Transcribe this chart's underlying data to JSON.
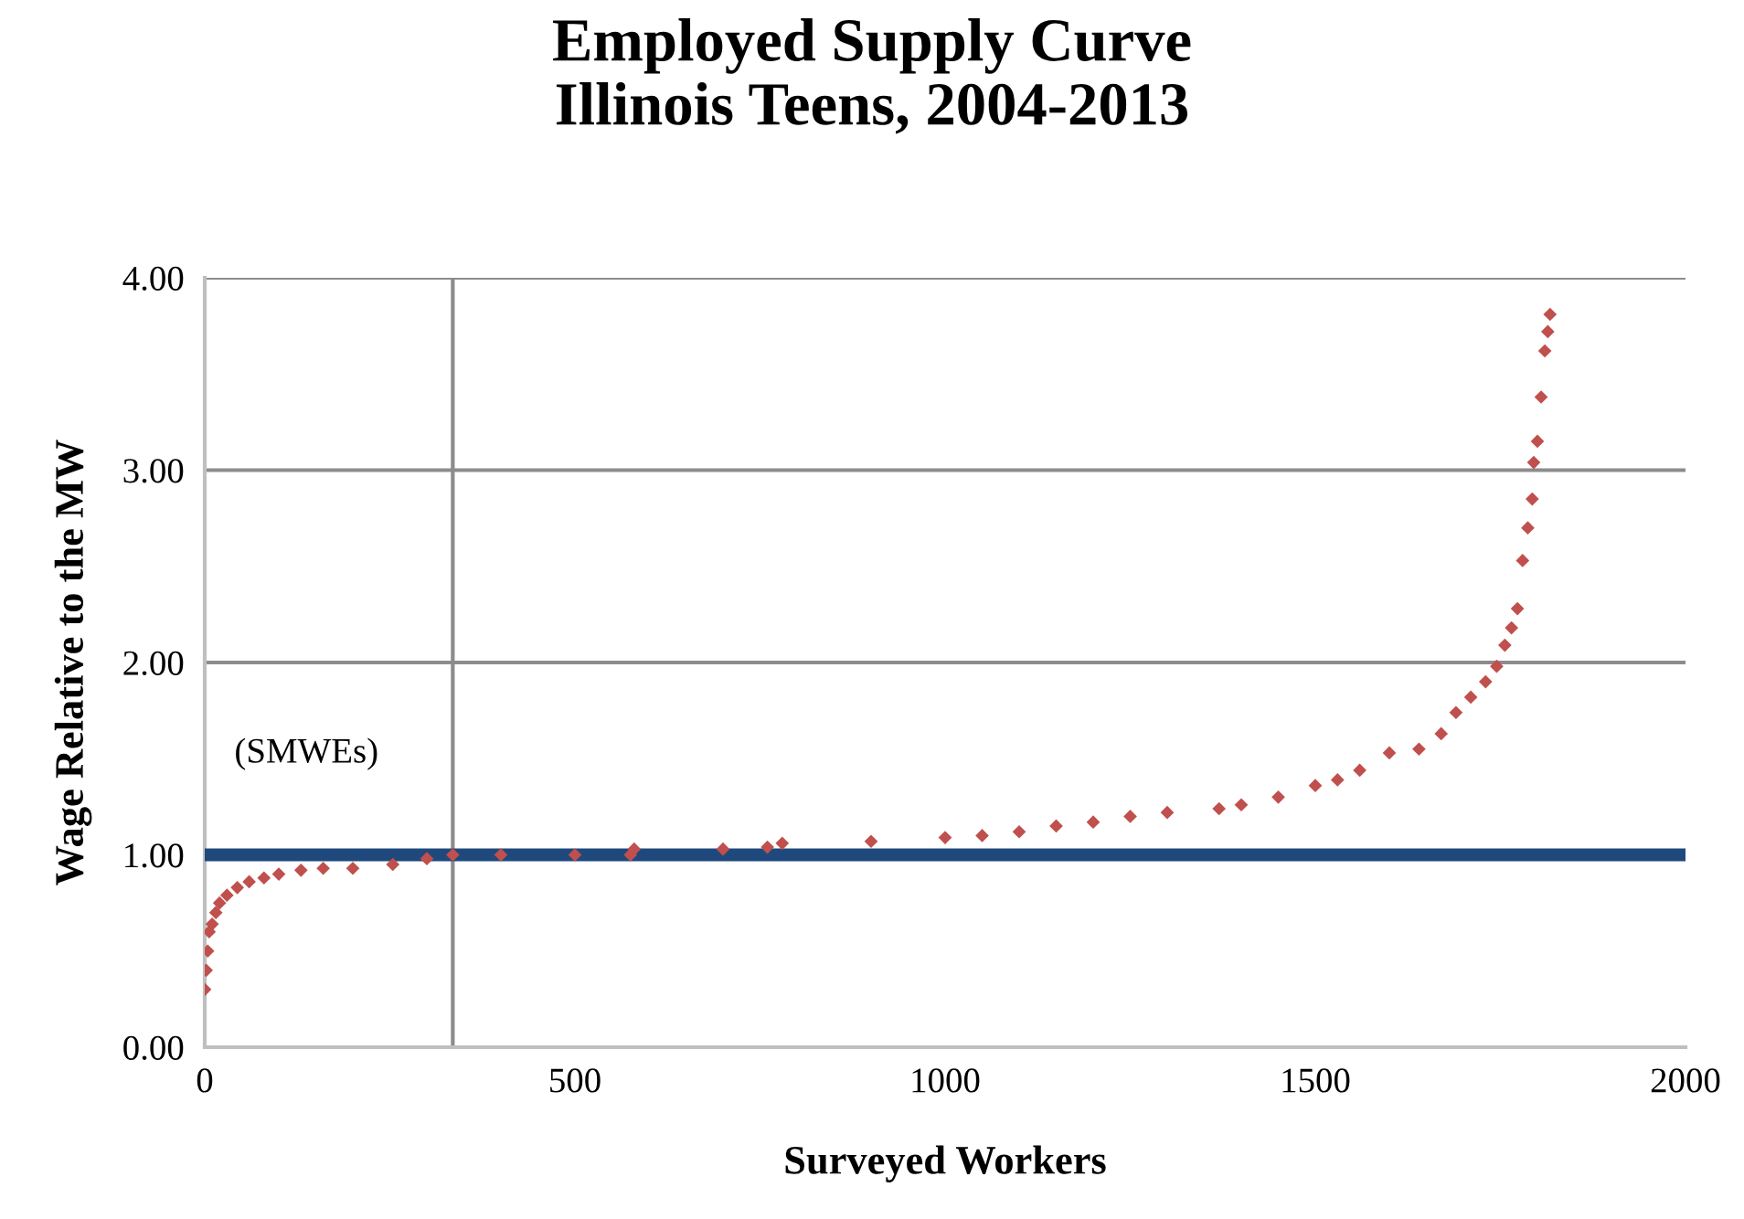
{
  "chart_data": {
    "type": "scatter",
    "title": "Employed Supply Curve\nIllinois Teens, 2004-2013",
    "xlabel": "Surveyed Workers",
    "ylabel": "Wage Relative to the MW",
    "annotations": [
      "(SMWEs)"
    ],
    "series": [
      {
        "color": "#c0504d",
        "x": [
          0,
          2,
          4,
          6,
          10,
          15,
          20,
          30,
          44,
          60,
          80,
          100,
          130,
          160,
          200,
          254,
          300,
          335,
          400,
          500,
          575,
          580,
          700,
          760,
          780,
          900,
          1000,
          1050,
          1100,
          1150,
          1200,
          1250,
          1300,
          1370,
          1400,
          1450,
          1500,
          1530,
          1560,
          1600,
          1640,
          1670,
          1690,
          1710,
          1730,
          1745,
          1756,
          1765,
          1773,
          1780,
          1787,
          1793,
          1795,
          1800,
          1805,
          1810,
          1814,
          1817
        ],
        "values": [
          0.3,
          0.4,
          0.5,
          0.6,
          0.64,
          0.7,
          0.75,
          0.79,
          0.83,
          0.86,
          0.88,
          0.9,
          0.92,
          0.93,
          0.93,
          0.95,
          0.98,
          1.0,
          1.0,
          1.0,
          1.0,
          1.03,
          1.03,
          1.04,
          1.06,
          1.07,
          1.09,
          1.1,
          1.12,
          1.15,
          1.17,
          1.2,
          1.22,
          1.24,
          1.26,
          1.3,
          1.36,
          1.39,
          1.44,
          1.53,
          1.55,
          1.63,
          1.74,
          1.82,
          1.9,
          1.98,
          2.09,
          2.18,
          2.28,
          2.53,
          2.7,
          2.85,
          3.04,
          3.15,
          3.38,
          3.62,
          3.72,
          3.81
        ]
      }
    ],
    "marker": "diamond",
    "ref_lines": [
      {
        "axis": "y",
        "value": 1.0,
        "label": null,
        "color": "#1f497d"
      },
      {
        "axis": "x",
        "value": 335,
        "label": null,
        "color": "#8c8c8c"
      }
    ],
    "xlim": [
      0,
      2000
    ],
    "xticks": [
      0,
      500,
      1000,
      1500,
      2000
    ],
    "ylim": [
      0,
      4
    ],
    "yticks": [
      {
        "value": 0,
        "label": "0.00"
      },
      {
        "value": 1,
        "label": "1.00"
      },
      {
        "value": 2,
        "label": "2.00"
      },
      {
        "value": 3,
        "label": "3.00"
      },
      {
        "value": 4,
        "label": "4.00"
      }
    ],
    "grid": "y"
  }
}
